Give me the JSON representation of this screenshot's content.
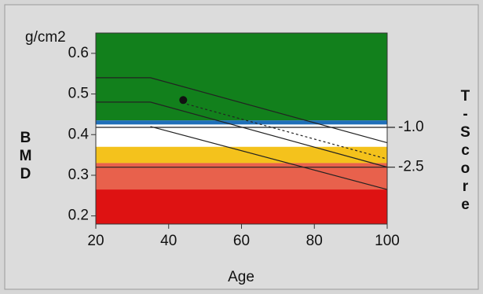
{
  "chart_data": {
    "type": "scatter",
    "y_unit_label": "g/cm2",
    "ylabel": "BMD",
    "y2label": "T-Score",
    "xlabel": "Age",
    "xlim": [
      20,
      100
    ],
    "xticks": [
      20,
      40,
      60,
      80,
      100
    ],
    "ylim": [
      0.18,
      0.65
    ],
    "yticks": [
      0.2,
      0.3,
      0.4,
      0.5,
      0.6
    ],
    "y2lim": [
      -4.64,
      2.55
    ],
    "y2ticks": [
      {
        "value": -1.0,
        "label": "-1.0"
      },
      {
        "value": -2.5,
        "label": "-2.5"
      }
    ],
    "bands": [
      {
        "from": 0.435,
        "to": 0.65,
        "color": "#12801c"
      },
      {
        "from": 0.425,
        "to": 0.435,
        "color": "#1f6fb8"
      },
      {
        "from": 0.37,
        "to": 0.418,
        "color": "#ffffff"
      },
      {
        "from": 0.33,
        "to": 0.37,
        "color": "#f4c21c"
      },
      {
        "from": 0.265,
        "to": 0.33,
        "color": "#e8614c"
      },
      {
        "from": 0.18,
        "to": 0.265,
        "color": "#de1212"
      }
    ],
    "lines": [
      {
        "x": [
          20,
          35,
          100
        ],
        "y": [
          0.54,
          0.54,
          0.38
        ],
        "dashed": false
      },
      {
        "x": [
          20,
          35,
          100
        ],
        "y": [
          0.48,
          0.48,
          0.32
        ],
        "dashed": false
      },
      {
        "x": [
          35,
          100
        ],
        "y": [
          0.42,
          0.265
        ],
        "dashed": false
      },
      {
        "x": [
          45,
          100
        ],
        "y": [
          0.475,
          0.34
        ],
        "dashed": true
      }
    ],
    "points": {
      "x": [
        44
      ],
      "y": [
        0.485
      ],
      "color": "#111111"
    }
  }
}
